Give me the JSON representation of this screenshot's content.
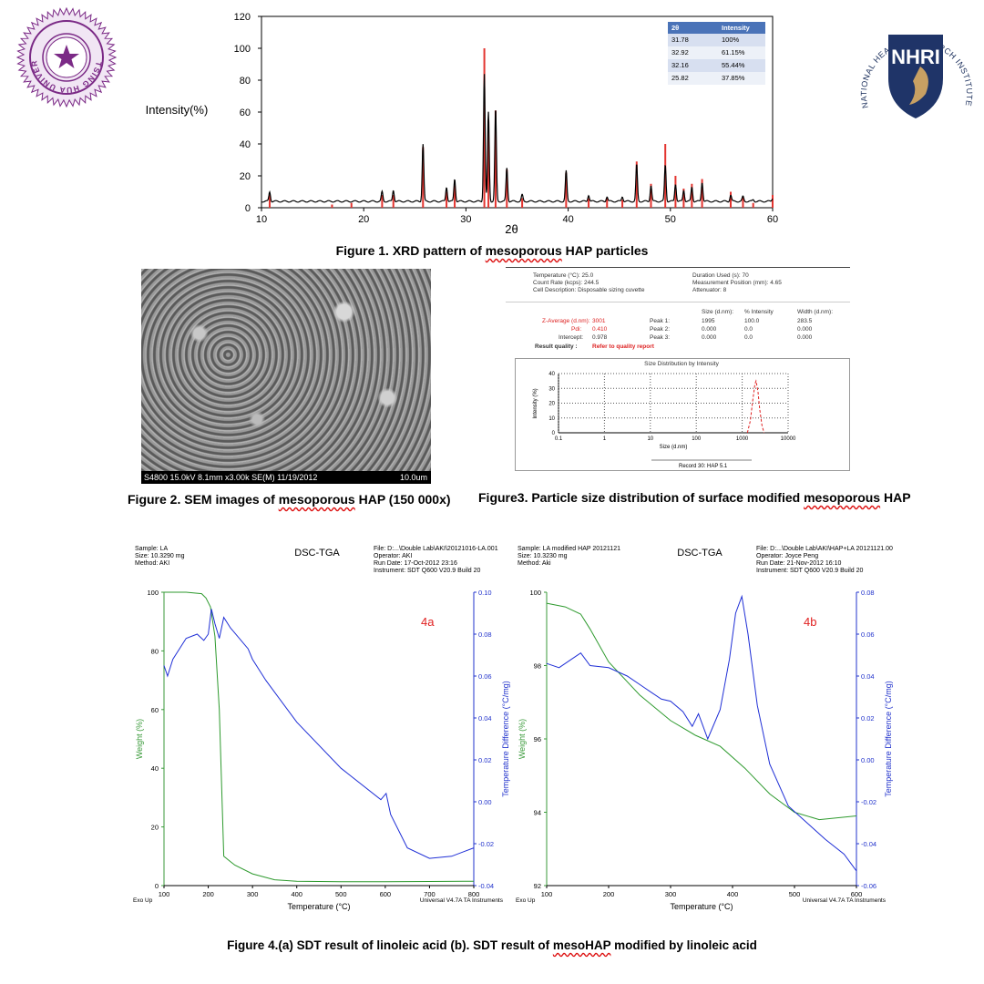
{
  "logos": {
    "left_text": "TSING HUA UNIVERSITY",
    "right_arc_text": "NATIONAL HEALTH RESEARCH INSTITUTES",
    "right_monogram": "NHRI"
  },
  "fig1": {
    "caption": "Figure 1. XRD pattern of mesoporous HAP particles",
    "caption_main": "Figure 1. XRD pattern of ",
    "caption_underlined": "mesoporous",
    "caption_tail": " HAP particles",
    "table": {
      "headers": [
        "2θ",
        "Intensity"
      ],
      "rows": [
        [
          "31.78",
          "100%"
        ],
        [
          "32.92",
          "61.15%"
        ],
        [
          "32.16",
          "55.44%"
        ],
        [
          "25.82",
          "37.85%"
        ]
      ]
    }
  },
  "fig2": {
    "caption_main": "Figure 2. SEM images of ",
    "caption_underlined": "mesoporous",
    "caption_tail": " HAP (150 000x)",
    "sem_info": "S4800 15.0kV 8.1mm x3.00k SE(M) 11/19/2012",
    "sem_scale": "10.0um"
  },
  "fig3": {
    "caption_main": "Figure3. Particle size distribution of surface modified ",
    "caption_underlined": "mesoporous",
    "caption_tail": " HAP",
    "header_left": [
      "Temperature (°C): 25.0",
      "Count Rate (kcps): 244.5",
      "Cell Description: Disposable sizing cuvette"
    ],
    "header_right": [
      "Duration Used (s): 70",
      "Measurement Position (mm): 4.65",
      "Attenuator: 8"
    ],
    "col_headers": [
      "Size (d.nm):",
      "% Intensity",
      "Width (d.nm):"
    ],
    "rows": [
      {
        "label": "Z-Average (d.nm):",
        "value": "3001",
        "peak": "Peak 1:",
        "size": "1995",
        "pct": "100.0",
        "width": "283.5"
      },
      {
        "label": "Pdi:",
        "value": "0.410",
        "peak": "Peak 2:",
        "size": "0.000",
        "pct": "0.0",
        "width": "0.000"
      },
      {
        "label": "Intercept:",
        "value": "0.978",
        "peak": "Peak 3:",
        "size": "0.000",
        "pct": "0.0",
        "width": "0.000"
      }
    ],
    "quality_label": "Result quality :",
    "quality_value": "Refer to quality report",
    "plot_title": "Size Distribution by Intensity",
    "legend": "Record 30: HAP 5.1"
  },
  "fig4": {
    "caption_main": "Figure 4.(a) SDT result of linoleic acid (b). SDT result of ",
    "caption_underlined": "mesoHAP",
    "caption_tail": " modified by linoleic acid",
    "a": {
      "sample": [
        "Sample: LA",
        "Size: 10.3290 mg",
        "Method: AKI"
      ],
      "file": [
        "File: D:...\\Double Lab\\AKI\\20121016-LA.001",
        "Operator: AKI",
        "Run Date: 17-Oct-2012 23:16",
        "Instrument: SDT Q600 V20.9 Build 20"
      ],
      "label": "4a"
    },
    "b": {
      "sample": [
        "Sample: LA modified HAP 20121121",
        "Size: 10.3230 mg",
        "Method: Aki"
      ],
      "file": [
        "File: D:...\\Double Lab\\AKI\\HAP+LA 20121121.001",
        "Operator: Joyce Peng",
        "Run Date: 21-Nov-2012 16:10",
        "Instrument: SDT Q600 V20.9 Build 20"
      ],
      "label": "4b"
    },
    "method_title": "DSC-TGA",
    "footer_left": "Exo Up",
    "footer_right": "Universal V4.7A TA Instruments"
  },
  "chart_data": [
    {
      "id": "xrd",
      "type": "line",
      "title": "",
      "xlabel": "2θ",
      "ylabel": "Intensity(%)",
      "xlim": [
        10,
        60
      ],
      "ylim": [
        0,
        120
      ],
      "xticks": [
        10,
        20,
        30,
        40,
        50,
        60
      ],
      "yticks": [
        0,
        20,
        40,
        60,
        80,
        100,
        120
      ],
      "reference_peaks": {
        "x": [
          10.8,
          16.9,
          18.8,
          21.8,
          22.9,
          25.8,
          28.1,
          28.9,
          31.8,
          32.2,
          32.9,
          34.0,
          35.5,
          39.8,
          42.0,
          43.8,
          45.3,
          46.7,
          48.1,
          49.5,
          50.5,
          51.3,
          52.1,
          53.1,
          55.9,
          57.1,
          58.1,
          60.0
        ],
        "y": [
          8,
          2,
          3,
          8,
          8,
          38,
          10,
          14,
          100,
          55,
          61,
          24,
          6,
          22,
          6,
          6,
          5,
          29,
          15,
          40,
          20,
          12,
          15,
          18,
          10,
          7,
          3,
          8
        ]
      },
      "measured_peaks": {
        "x": [
          10.8,
          16.9,
          18.8,
          21.8,
          22.9,
          25.8,
          28.1,
          28.9,
          31.8,
          32.2,
          32.9,
          34.0,
          35.5,
          39.8,
          42.0,
          43.8,
          45.3,
          46.7,
          48.1,
          49.5,
          50.5,
          51.3,
          52.1,
          53.1,
          55.9,
          57.1,
          58.1,
          60.0
        ],
        "y": [
          10,
          4,
          4,
          10,
          11,
          40,
          13,
          18,
          84,
          60,
          62,
          25,
          8,
          23,
          8,
          7,
          7,
          27,
          14,
          27,
          15,
          11,
          13,
          16,
          8,
          7,
          5,
          6
        ]
      },
      "baseline": 4
    },
    {
      "id": "dls",
      "type": "line",
      "title": "Size Distribution by Intensity",
      "xlabel": "Size (d.nm)",
      "ylabel": "Intensity (%)",
      "xscale": "log",
      "xlim": [
        0.1,
        10000
      ],
      "ylim": [
        0,
        40
      ],
      "xticks": [
        0.1,
        1,
        10,
        100,
        1000,
        10000
      ],
      "yticks": [
        0,
        10,
        20,
        30,
        40
      ],
      "series": [
        {
          "name": "Record 30: HAP 5.1",
          "x": [
            1300,
            1500,
            1700,
            1900,
            2000,
            2200,
            2400,
            2700,
            3000
          ],
          "y": [
            0,
            8,
            22,
            33,
            35,
            28,
            16,
            5,
            0
          ]
        }
      ]
    },
    {
      "id": "sdt-a",
      "type": "line",
      "title": "DSC-TGA",
      "xlabel": "Temperature (°C)",
      "ylabel": "Weight (%)",
      "y2label": "Temperature Difference (°C/mg)",
      "xlim": [
        100,
        800
      ],
      "ylim": [
        0,
        100
      ],
      "y2lim": [
        -0.04,
        0.1
      ],
      "xticks": [
        100,
        200,
        300,
        400,
        500,
        600,
        700,
        800
      ],
      "yticks": [
        0,
        20,
        40,
        60,
        80,
        100
      ],
      "y2ticks": [
        -0.04,
        -0.02,
        0.0,
        0.02,
        0.04,
        0.06,
        0.08,
        0.1
      ],
      "series": [
        {
          "axis": "y",
          "x": [
            100,
            150,
            185,
            195,
            205,
            215,
            225,
            235,
            260,
            300,
            350,
            400,
            500,
            600,
            700,
            800
          ],
          "y": [
            100,
            100,
            99.5,
            98,
            95,
            85,
            60,
            10,
            7,
            4,
            2,
            1.5,
            1.3,
            1.3,
            1.4,
            1.5
          ]
        },
        {
          "axis": "y2",
          "x": [
            100,
            108,
            120,
            150,
            175,
            190,
            200,
            207,
            215,
            225,
            235,
            250,
            270,
            290,
            300,
            330,
            400,
            500,
            590,
            602,
            612,
            650,
            700,
            750,
            800
          ],
          "y": [
            0.065,
            0.06,
            0.068,
            0.078,
            0.08,
            0.077,
            0.08,
            0.092,
            0.085,
            0.078,
            0.088,
            0.083,
            0.078,
            0.073,
            0.068,
            0.058,
            0.038,
            0.016,
            0.001,
            0.004,
            -0.006,
            -0.022,
            -0.027,
            -0.026,
            -0.022
          ]
        }
      ]
    },
    {
      "id": "sdt-b",
      "type": "line",
      "title": "DSC-TGA",
      "xlabel": "Temperature (°C)",
      "ylabel": "Weight (%)",
      "y2label": "Temperature Difference (°C/mg)",
      "xlim": [
        100,
        600
      ],
      "ylim": [
        92,
        100
      ],
      "y2lim": [
        -0.06,
        0.08
      ],
      "xticks": [
        100,
        200,
        300,
        400,
        500,
        600
      ],
      "yticks": [
        92,
        94,
        96,
        98,
        100
      ],
      "y2ticks": [
        -0.06,
        -0.04,
        -0.02,
        0.0,
        0.02,
        0.04,
        0.06,
        0.08
      ],
      "series": [
        {
          "axis": "y",
          "x": [
            100,
            130,
            155,
            170,
            200,
            250,
            300,
            340,
            380,
            420,
            460,
            500,
            540,
            600
          ],
          "y": [
            99.7,
            99.6,
            99.4,
            99.0,
            98.1,
            97.2,
            96.5,
            96.1,
            95.8,
            95.2,
            94.5,
            94.0,
            93.8,
            93.9
          ]
        },
        {
          "axis": "y2",
          "x": [
            100,
            120,
            140,
            155,
            170,
            200,
            230,
            255,
            270,
            285,
            300,
            320,
            335,
            345,
            360,
            380,
            395,
            405,
            415,
            425,
            440,
            460,
            490,
            520,
            550,
            580,
            600
          ],
          "y": [
            0.046,
            0.044,
            0.048,
            0.051,
            0.045,
            0.044,
            0.04,
            0.035,
            0.032,
            0.029,
            0.028,
            0.023,
            0.016,
            0.022,
            0.01,
            0.024,
            0.048,
            0.07,
            0.078,
            0.06,
            0.026,
            -0.002,
            -0.022,
            -0.03,
            -0.038,
            -0.045,
            -0.053
          ]
        }
      ]
    }
  ]
}
